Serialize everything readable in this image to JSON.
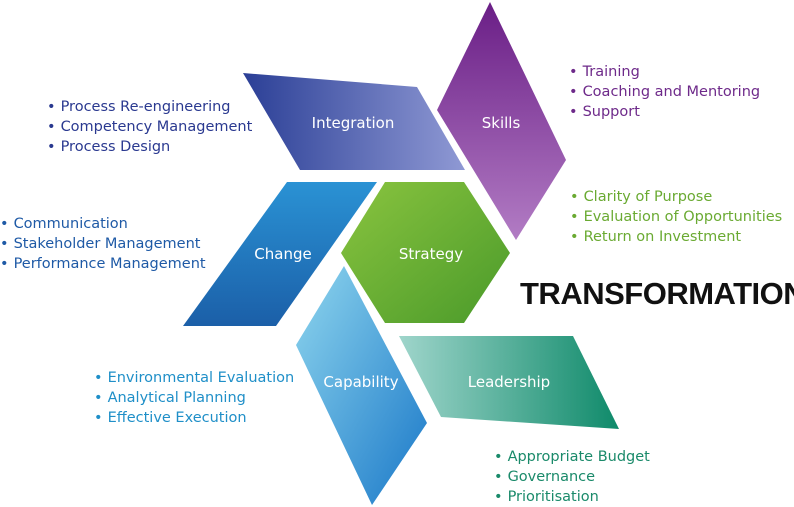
{
  "title": "TRANSFORMATION",
  "segments": {
    "integration": {
      "label": "Integration",
      "color_start": "#2b3f96",
      "color_end": "#8f99d4",
      "bullets": [
        "Process Re-engineering",
        "Competency Management",
        "Process Design"
      ],
      "text_color": "#2a3990"
    },
    "skills": {
      "label": "Skills",
      "color_start": "#6a1e86",
      "color_end": "#b27cc4",
      "bullets": [
        "Training",
        "Coaching and Mentoring",
        "Support"
      ],
      "text_color": "#6e2a8a"
    },
    "strategy": {
      "label": "Strategy",
      "color_start": "#8ac43f",
      "color_end": "#4a9a2a",
      "bullets": [
        "Clarity of Purpose",
        "Evaluation of Opportunities",
        "Return on Investment"
      ],
      "text_color": "#6aaa32"
    },
    "change": {
      "label": "Change",
      "color_start": "#2a92d4",
      "color_end": "#1b5fa8",
      "bullets": [
        "Communication",
        "Stakeholder Management",
        "Performance Management"
      ],
      "text_color": "#1f5aa6"
    },
    "capability": {
      "label": "Capability",
      "color_start": "#8fd6ee",
      "color_end": "#1a78c8",
      "bullets": [
        "Environmental Evaluation",
        "Analytical Planning",
        "Effective Execution"
      ],
      "text_color": "#1f8fc8"
    },
    "leadership": {
      "label": "Leadership",
      "color_start": "#9fd5cb",
      "color_end": "#0f8a6a",
      "bullets": [
        "Appropriate Budget",
        "Governance",
        "Prioritisation"
      ],
      "text_color": "#1a8a6a"
    }
  }
}
